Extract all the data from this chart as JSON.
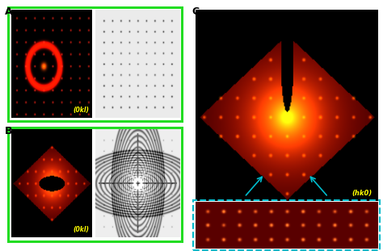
{
  "fig_width": 4.74,
  "fig_height": 3.11,
  "dpi": 100,
  "bg_color": "#ffffff",
  "label_A": "A",
  "label_B": "B",
  "label_C": "C",
  "label_0kl_A": "(0kl)",
  "label_0kl_B": "(0kl)",
  "label_hk0": "(hk0)",
  "border_color_green": "#22dd22",
  "border_color_cyan": "#00bbcc",
  "text_color_yellow": "#ffff00"
}
